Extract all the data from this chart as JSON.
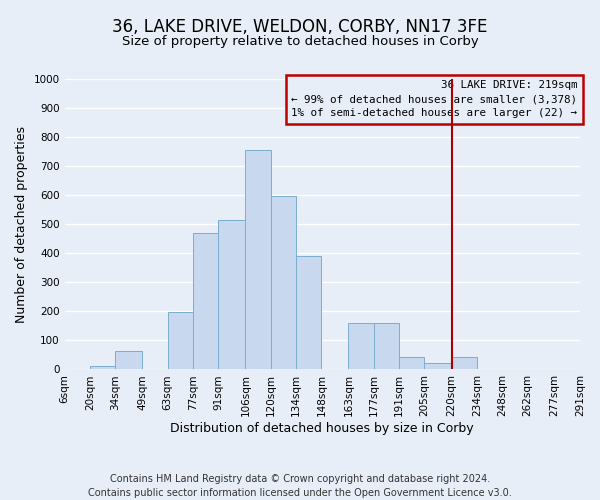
{
  "title": "36, LAKE DRIVE, WELDON, CORBY, NN17 3FE",
  "subtitle": "Size of property relative to detached houses in Corby",
  "xlabel": "Distribution of detached houses by size in Corby",
  "ylabel": "Number of detached properties",
  "bin_edges": [
    6,
    20,
    34,
    49,
    63,
    77,
    91,
    106,
    120,
    134,
    148,
    163,
    177,
    191,
    205,
    220,
    234,
    248,
    262,
    277,
    291
  ],
  "counts": [
    0,
    13,
    62,
    0,
    197,
    471,
    515,
    757,
    597,
    390,
    0,
    160,
    160,
    42,
    22,
    42,
    0,
    0,
    0,
    0
  ],
  "bar_color": "#c8d8ee",
  "bar_edge_color": "#7aadcf",
  "property_line_x": 220,
  "property_line_color": "#aa0000",
  "ylim": [
    0,
    1000
  ],
  "yticks": [
    0,
    100,
    200,
    300,
    400,
    500,
    600,
    700,
    800,
    900,
    1000
  ],
  "tick_labels": [
    "6sqm",
    "20sqm",
    "34sqm",
    "49sqm",
    "63sqm",
    "77sqm",
    "91sqm",
    "106sqm",
    "120sqm",
    "134sqm",
    "148sqm",
    "163sqm",
    "177sqm",
    "191sqm",
    "205sqm",
    "220sqm",
    "234sqm",
    "248sqm",
    "262sqm",
    "277sqm",
    "291sqm"
  ],
  "legend_title": "36 LAKE DRIVE: 219sqm",
  "legend_line1": "← 99% of detached houses are smaller (3,378)",
  "legend_line2": "1% of semi-detached houses are larger (22) →",
  "legend_box_color": "#bb0000",
  "footer_line1": "Contains HM Land Registry data © Crown copyright and database right 2024.",
  "footer_line2": "Contains public sector information licensed under the Open Government Licence v3.0.",
  "bg_color": "#e8eef7",
  "grid_color": "#ffffff",
  "title_fontsize": 12,
  "subtitle_fontsize": 9.5,
  "axis_label_fontsize": 9,
  "tick_fontsize": 7.5,
  "footer_fontsize": 7
}
